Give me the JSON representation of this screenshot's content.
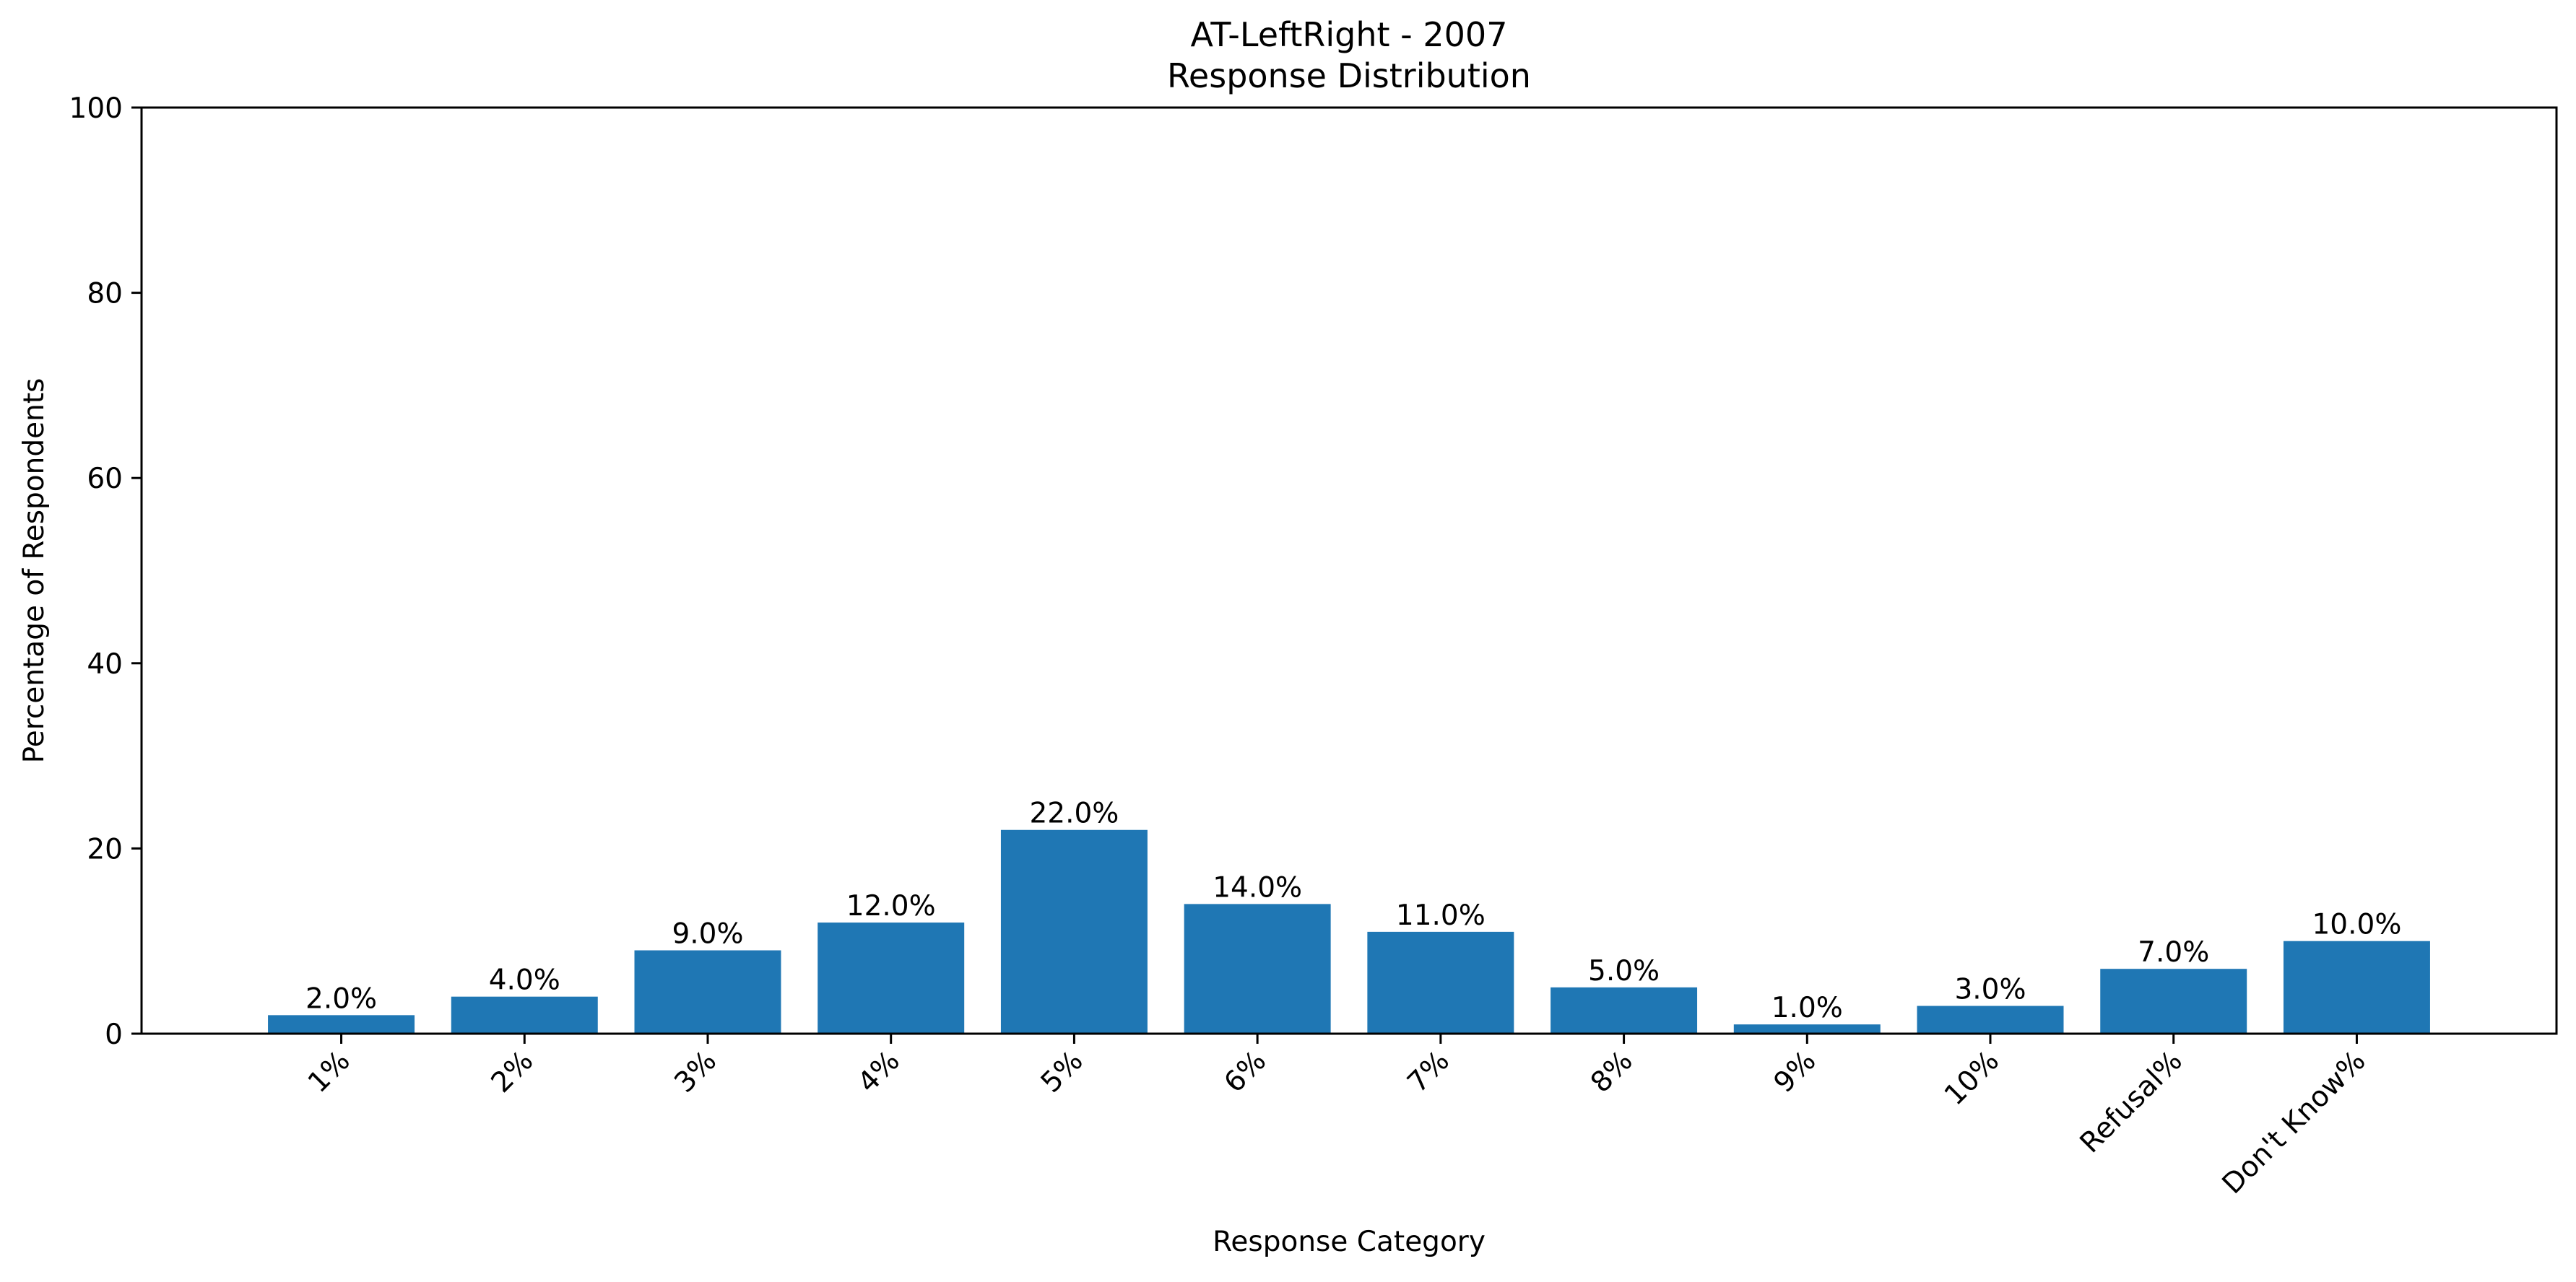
{
  "chart_data": {
    "type": "bar",
    "title_line1": "AT-LeftRight - 2007",
    "title_line2": "Response Distribution",
    "xlabel": "Response Category",
    "ylabel": "Percentage of Respondents",
    "categories": [
      "1%",
      "2%",
      "3%",
      "4%",
      "5%",
      "6%",
      "7%",
      "8%",
      "9%",
      "10%",
      "Refusal%",
      "Don't Know%"
    ],
    "values": [
      2.0,
      4.0,
      9.0,
      12.0,
      22.0,
      14.0,
      11.0,
      5.0,
      1.0,
      3.0,
      7.0,
      10.0
    ],
    "value_labels": [
      "2.0%",
      "4.0%",
      "9.0%",
      "12.0%",
      "22.0%",
      "14.0%",
      "11.0%",
      "5.0%",
      "1.0%",
      "3.0%",
      "7.0%",
      "10.0%"
    ],
    "ylim": [
      0,
      100
    ],
    "yticks": [
      0,
      20,
      40,
      60,
      80,
      100
    ],
    "ytick_labels": [
      "0",
      "20",
      "40",
      "60",
      "80",
      "100"
    ],
    "grid": false,
    "legend": "none",
    "bar_color": "#1f77b4"
  }
}
